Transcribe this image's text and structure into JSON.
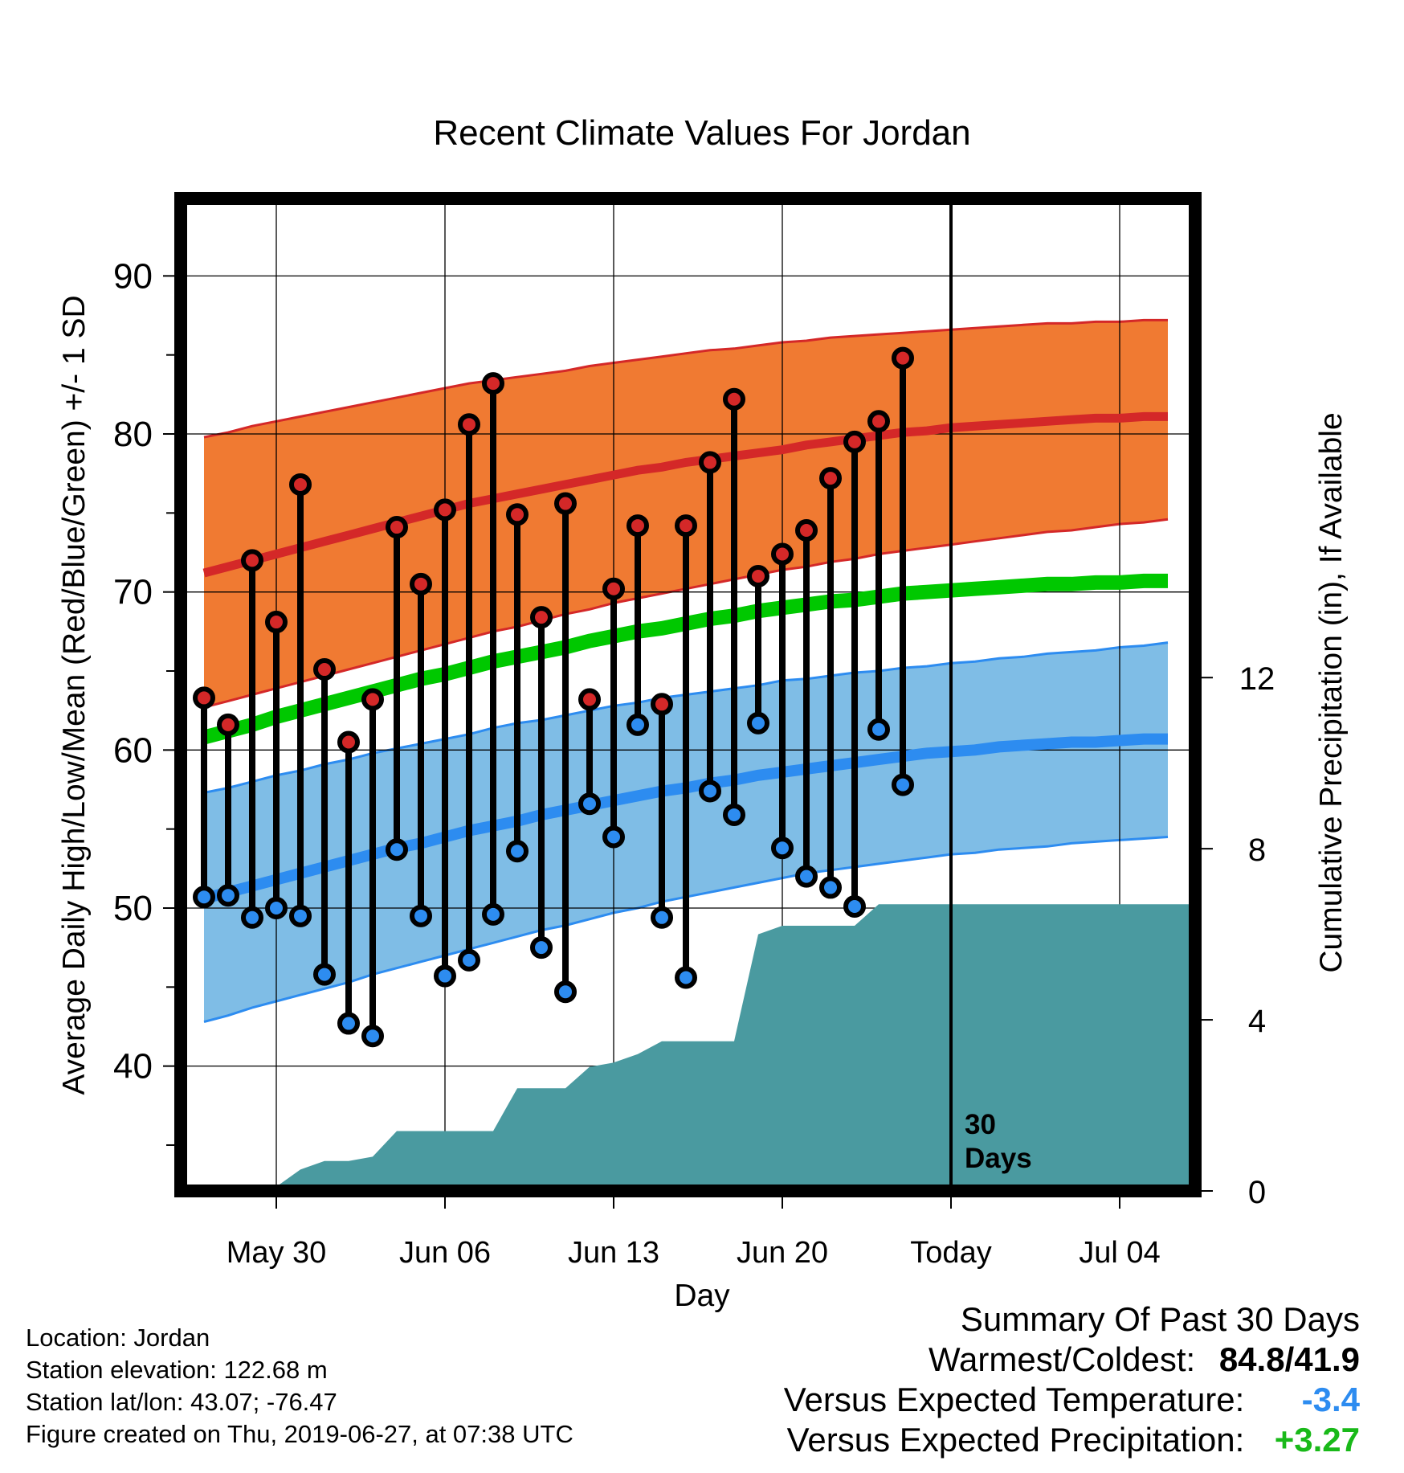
{
  "chart_data": {
    "type": "line",
    "title": "Recent Climate Values For Jordan",
    "xlabel": "Day",
    "ylabel_left": "Average Daily High/Low/Mean (Red/Blue/Green) +/- 1 SD",
    "ylabel_right": "Cumulative Precipitation (in), If Available",
    "x_ticks": [
      "May 30",
      "Jun 06",
      "Jun 13",
      "Jun 20",
      "Today",
      "Jul 04"
    ],
    "y_left_ticks": [
      "40",
      "50",
      "60",
      "70",
      "80",
      "90"
    ],
    "y_right_ticks": [
      "0",
      "4",
      "8",
      "12"
    ],
    "ylim_left": [
      32.1,
      94.9
    ],
    "ylim_right": [
      0,
      23.2
    ],
    "today_marker": {
      "value": "30",
      "label": "Days"
    },
    "days": [
      "May 27",
      "May 28",
      "May 29",
      "May 30",
      "May 31",
      "Jun 01",
      "Jun 02",
      "Jun 03",
      "Jun 04",
      "Jun 05",
      "Jun 06",
      "Jun 07",
      "Jun 08",
      "Jun 09",
      "Jun 10",
      "Jun 11",
      "Jun 12",
      "Jun 13",
      "Jun 14",
      "Jun 15",
      "Jun 16",
      "Jun 17",
      "Jun 18",
      "Jun 19",
      "Jun 20",
      "Jun 21",
      "Jun 22",
      "Jun 23",
      "Jun 24",
      "Jun 25",
      "Jun 26",
      "Jun 27",
      "Jun 28",
      "Jun 29",
      "Jun 30",
      "Jul 01",
      "Jul 02",
      "Jul 03",
      "Jul 04",
      "Jul 05",
      "Jul 06"
    ],
    "observed_high": [
      63.3,
      61.6,
      72.0,
      68.1,
      76.8,
      65.1,
      60.5,
      63.2,
      74.1,
      70.5,
      75.2,
      80.6,
      83.2,
      74.9,
      68.4,
      75.6,
      63.2,
      70.2,
      74.2,
      62.9,
      74.2,
      78.2,
      82.2,
      71.0,
      72.4,
      73.9,
      77.2,
      79.5,
      80.8,
      84.8
    ],
    "observed_low": [
      50.7,
      50.8,
      49.4,
      50.0,
      49.5,
      45.8,
      42.7,
      41.9,
      53.7,
      49.5,
      45.7,
      46.7,
      49.6,
      53.6,
      47.5,
      44.7,
      56.6,
      54.5,
      61.6,
      49.4,
      45.6,
      57.4,
      55.9,
      61.7,
      53.8,
      52.0,
      51.3,
      50.1,
      61.3,
      57.8
    ],
    "series": [
      {
        "name": "High mean",
        "values": [
          71.2,
          71.6,
          72.0,
          72.4,
          72.8,
          73.2,
          73.6,
          74.0,
          74.4,
          74.8,
          75.2,
          75.6,
          75.9,
          76.2,
          76.5,
          76.8,
          77.1,
          77.4,
          77.7,
          77.9,
          78.2,
          78.4,
          78.6,
          78.8,
          79.0,
          79.3,
          79.5,
          79.7,
          79.9,
          80.1,
          80.2,
          80.4,
          80.5,
          80.6,
          80.7,
          80.8,
          80.9,
          81.0,
          81.0,
          81.1,
          81.1
        ]
      },
      {
        "name": "High +1 SD",
        "values": [
          79.8,
          80.1,
          80.5,
          80.8,
          81.1,
          81.4,
          81.7,
          82.0,
          82.3,
          82.6,
          82.9,
          83.2,
          83.4,
          83.6,
          83.8,
          84.0,
          84.3,
          84.5,
          84.7,
          84.9,
          85.1,
          85.3,
          85.4,
          85.6,
          85.8,
          85.9,
          86.1,
          86.2,
          86.3,
          86.4,
          86.5,
          86.6,
          86.7,
          86.8,
          86.9,
          87.0,
          87.0,
          87.1,
          87.1,
          87.2,
          87.2
        ]
      },
      {
        "name": "High -1 SD",
        "values": [
          62.7,
          63.1,
          63.5,
          63.9,
          64.3,
          64.7,
          65.1,
          65.5,
          65.9,
          66.3,
          66.7,
          67.1,
          67.5,
          67.8,
          68.2,
          68.6,
          68.9,
          69.3,
          69.6,
          69.9,
          70.2,
          70.5,
          70.8,
          71.1,
          71.4,
          71.6,
          71.9,
          72.1,
          72.4,
          72.6,
          72.8,
          73.0,
          73.2,
          73.4,
          73.6,
          73.8,
          73.9,
          74.1,
          74.3,
          74.4,
          74.6
        ]
      },
      {
        "name": "Mean",
        "values": [
          60.8,
          61.2,
          61.6,
          62.1,
          62.5,
          62.9,
          63.3,
          63.7,
          64.1,
          64.5,
          64.8,
          65.2,
          65.6,
          65.9,
          66.2,
          66.5,
          66.9,
          67.2,
          67.5,
          67.7,
          68.0,
          68.3,
          68.5,
          68.8,
          69.0,
          69.2,
          69.4,
          69.5,
          69.7,
          69.9,
          70.0,
          70.1,
          70.2,
          70.3,
          70.4,
          70.5,
          70.5,
          70.6,
          70.6,
          70.7,
          70.7
        ]
      },
      {
        "name": "Low mean",
        "values": [
          50.6,
          51.0,
          51.4,
          51.8,
          52.2,
          52.6,
          53.0,
          53.4,
          53.8,
          54.1,
          54.5,
          54.9,
          55.2,
          55.5,
          55.9,
          56.2,
          56.5,
          56.8,
          57.1,
          57.4,
          57.6,
          57.9,
          58.1,
          58.4,
          58.6,
          58.8,
          59.0,
          59.2,
          59.4,
          59.6,
          59.8,
          59.9,
          60.0,
          60.2,
          60.3,
          60.4,
          60.5,
          60.5,
          60.6,
          60.7,
          60.7
        ]
      },
      {
        "name": "Low +1 SD",
        "values": [
          57.3,
          57.6,
          58.0,
          58.4,
          58.7,
          59.1,
          59.4,
          59.8,
          60.1,
          60.4,
          60.7,
          61.0,
          61.4,
          61.7,
          61.9,
          62.2,
          62.5,
          62.8,
          63.0,
          63.3,
          63.5,
          63.7,
          63.9,
          64.1,
          64.4,
          64.5,
          64.7,
          64.9,
          65.0,
          65.2,
          65.3,
          65.5,
          65.6,
          65.8,
          65.9,
          66.1,
          66.2,
          66.3,
          66.5,
          66.6,
          66.8
        ]
      },
      {
        "name": "Low -1 SD",
        "values": [
          42.8,
          43.2,
          43.7,
          44.1,
          44.5,
          44.9,
          45.3,
          45.8,
          46.2,
          46.6,
          47.0,
          47.4,
          47.8,
          48.2,
          48.6,
          48.9,
          49.3,
          49.7,
          50.0,
          50.4,
          50.7,
          51.0,
          51.3,
          51.6,
          51.9,
          52.2,
          52.4,
          52.6,
          52.8,
          53.0,
          53.2,
          53.4,
          53.5,
          53.7,
          53.8,
          53.9,
          54.1,
          54.2,
          54.3,
          54.4,
          54.5
        ]
      },
      {
        "name": "Cumulative precipitation",
        "values": [
          0.1,
          0.1,
          0.1,
          0.1,
          0.5,
          0.7,
          0.7,
          0.8,
          1.4,
          1.4,
          1.4,
          1.4,
          1.4,
          2.4,
          2.4,
          2.4,
          2.9,
          3.0,
          3.2,
          3.5,
          3.5,
          3.5,
          3.5,
          6.0,
          6.2,
          6.2,
          6.2,
          6.2,
          6.7,
          6.7,
          6.7,
          6.7,
          6.7,
          6.7,
          6.7,
          6.7,
          6.7,
          6.7,
          6.7,
          6.7,
          6.7
        ]
      }
    ],
    "colors": {
      "high_band": "#f07a32",
      "high_line": "#d42828",
      "low_band": "#7fbde6",
      "low_line": "#2d8cf0",
      "mean_line": "#00c800",
      "precip": "#4a9aa0",
      "high_marker": "#d42828",
      "low_marker": "#2d8cf0"
    }
  },
  "footer": {
    "location": "Location: Jordan",
    "elevation": "Station elevation: 122.68 m",
    "latlon": "Station lat/lon: 43.07; -76.47",
    "created": "Figure created on Thu, 2019-06-27, at 07:38 UTC"
  },
  "summary": {
    "heading": "Summary Of Past 30 Days",
    "warm_cold_label": "Warmest/Coldest:",
    "warm_cold_value": "84.8/41.9",
    "temp_label": "Versus Expected Temperature:",
    "temp_value": "-3.4",
    "temp_color": "#2d8cf0",
    "precip_label": "Versus Expected Precipitation:",
    "precip_value": "+3.27",
    "precip_color": "#19b919"
  }
}
